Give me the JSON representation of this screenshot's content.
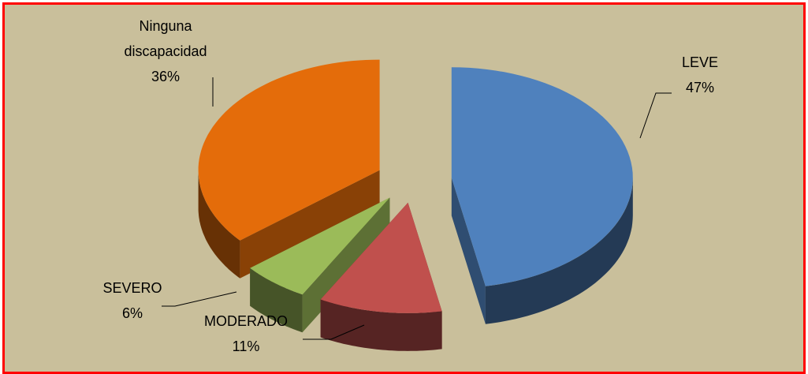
{
  "chart_data": {
    "type": "pie3d",
    "categories": [
      "LEVE",
      "MODERADO",
      "SEVERO",
      "Ninguna discapacidad"
    ],
    "values": [
      47,
      11,
      6,
      36
    ],
    "value_labels": [
      "47%",
      "11%",
      "6%",
      "36%"
    ],
    "colors": [
      "#4f81bd",
      "#c0504d",
      "#9bbb59",
      "#e46c0a"
    ],
    "exploded": true
  }
}
